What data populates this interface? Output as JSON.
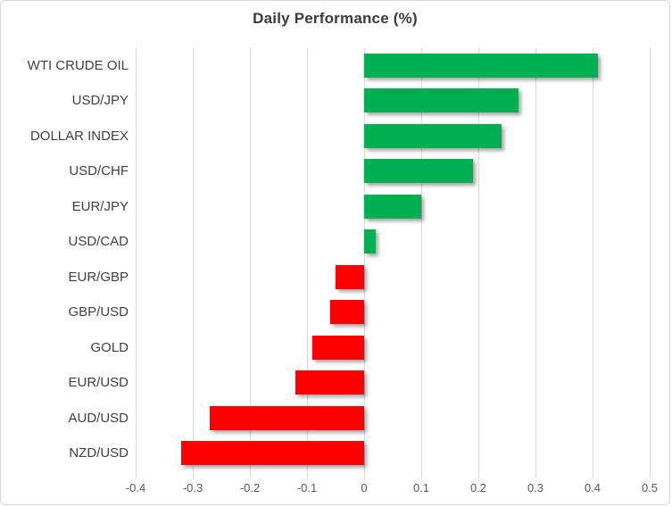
{
  "chart_title": "Daily Performance (%)",
  "chart_data": {
    "type": "bar",
    "orientation": "horizontal",
    "title": "Daily Performance (%)",
    "categories": [
      "WTI CRUDE OIL",
      "USD/JPY",
      "DOLLAR INDEX",
      "USD/CHF",
      "EUR/JPY",
      "USD/CAD",
      "EUR/GBP",
      "GBP/USD",
      "GOLD",
      "EUR/USD",
      "AUD/USD",
      "NZD/USD"
    ],
    "values": [
      0.41,
      0.27,
      0.24,
      0.19,
      0.1,
      0.02,
      -0.05,
      -0.06,
      -0.09,
      -0.12,
      -0.27,
      -0.32
    ],
    "x_tick_labels": [
      "-0.4",
      "-0.3",
      "-0.2",
      "-0.1",
      "0",
      "0.1",
      "0.2",
      "0.3",
      "0.4",
      "0.5"
    ],
    "x_ticks": [
      -0.4,
      -0.3,
      -0.2,
      -0.1,
      0,
      0.1,
      0.2,
      0.3,
      0.4,
      0.5
    ],
    "xlim": [
      -0.4,
      0.5
    ],
    "xlabel": "",
    "ylabel": "",
    "legend": "none",
    "grid": "vertical",
    "positive_color": "#00b050",
    "negative_color": "#ff0000",
    "gridline_color": "#d9d9d9",
    "title_color": "#3b3b3b",
    "category_label_color": "#404040",
    "tick_label_color": "#595959"
  }
}
